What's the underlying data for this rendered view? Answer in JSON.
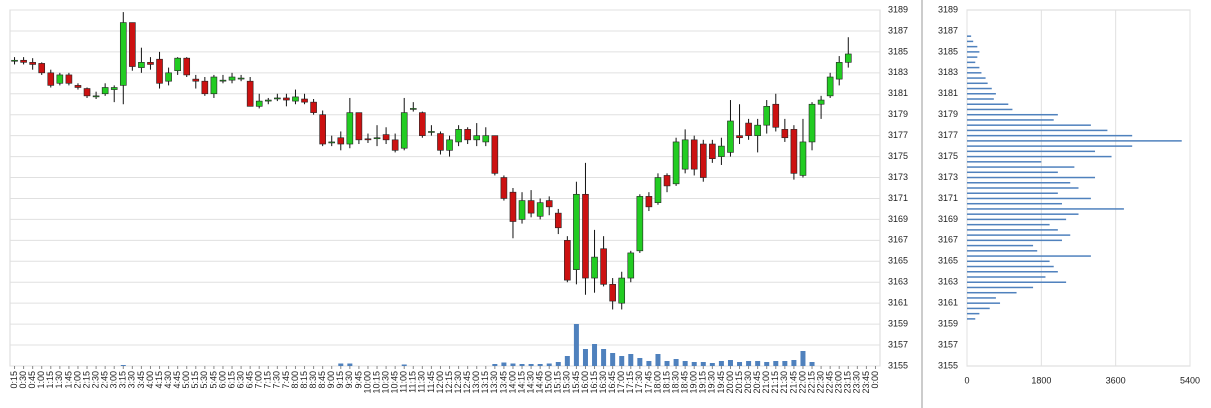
{
  "chart_data": [
    {
      "type": "candlestick",
      "categories": [
        "0:15",
        "0:30",
        "0:45",
        "1:00",
        "1:15",
        "1:30",
        "1:45",
        "2:00",
        "2:15",
        "2:30",
        "2:45",
        "3:00",
        "3:15",
        "3:30",
        "3:45",
        "4:00",
        "4:15",
        "4:30",
        "4:45",
        "5:00",
        "5:15",
        "5:30",
        "5:45",
        "6:00",
        "6:15",
        "6:30",
        "6:45",
        "7:00",
        "7:15",
        "7:30",
        "7:45",
        "8:00",
        "8:15",
        "8:30",
        "8:45",
        "9:00",
        "9:15",
        "9:30",
        "9:45",
        "10:00",
        "10:15",
        "10:30",
        "10:45",
        "11:00",
        "11:15",
        "11:30",
        "11:45",
        "12:00",
        "12:15",
        "12:30",
        "12:45",
        "13:00",
        "13:15",
        "13:30",
        "13:45",
        "14:00",
        "14:15",
        "14:30",
        "14:45",
        "15:00",
        "15:15",
        "15:30",
        "15:45",
        "16:00",
        "16:15",
        "16:30",
        "16:45",
        "17:00",
        "17:15",
        "17:30",
        "17:45",
        "18:00",
        "18:15",
        "18:30",
        "18:45",
        "19:00",
        "19:15",
        "19:30",
        "19:45",
        "20:00",
        "20:15",
        "20:30",
        "20:45",
        "21:00",
        "21:15",
        "21:30",
        "21:45",
        "22:00",
        "22:15",
        "22:30",
        "22:45",
        "23:00",
        "23:15",
        "23:30",
        "23:45",
        "0:00"
      ],
      "open": [
        3184.2,
        3184.2,
        3184.0,
        3183.9,
        3183.0,
        3182.0,
        3182.8,
        3181.8,
        3181.5,
        3180.8,
        3181.0,
        3181.4,
        3181.8,
        3187.8,
        3183.5,
        3184.0,
        3184.3,
        3182.2,
        3183.2,
        3184.4,
        3182.4,
        3182.2,
        3181.0,
        3182.3,
        3182.3,
        3182.5,
        3182.2,
        3179.8,
        3180.3,
        3180.6,
        3180.6,
        3180.3,
        3180.5,
        3180.2,
        3179.0,
        3176.4,
        3176.8,
        3176.2,
        3179.2,
        3176.7,
        3176.8,
        3177.1,
        3176.6,
        3175.8,
        3179.6,
        3179.2,
        3177.4,
        3177.2,
        3175.6,
        3176.4,
        3177.6,
        3176.6,
        3176.4,
        3177.0,
        3173.0,
        3171.6,
        3169.0,
        3170.8,
        3169.3,
        3170.8,
        3169.6,
        3167.0,
        3164.2,
        3171.4,
        3163.4,
        3166.2,
        3162.8,
        3161.0,
        3163.4,
        3166.0,
        3171.2,
        3170.6,
        3173.2,
        3172.4,
        3173.8,
        3176.6,
        3176.2,
        3176.2,
        3175.0,
        3175.4,
        3177.0,
        3178.2,
        3177.0,
        3178.0,
        3180.0,
        3177.6,
        3177.6,
        3173.2,
        3176.4,
        3180.0,
        3180.8,
        3182.4,
        3184.0,
        null,
        null,
        null
      ],
      "high": [
        3184.5,
        3184.5,
        3184.4,
        3184.0,
        3183.3,
        3183.0,
        3183.0,
        3182.0,
        3181.6,
        3181.2,
        3182.0,
        3181.8,
        3188.8,
        3187.8,
        3185.4,
        3184.5,
        3185.0,
        3183.5,
        3184.5,
        3184.5,
        3182.8,
        3182.6,
        3182.8,
        3182.8,
        3183.0,
        3182.8,
        3182.6,
        3181.0,
        3180.6,
        3181.0,
        3181.0,
        3181.4,
        3181.0,
        3180.5,
        3179.4,
        3177.0,
        3177.4,
        3180.6,
        3179.2,
        3177.2,
        3178.0,
        3177.8,
        3177.2,
        3180.6,
        3180.2,
        3179.3,
        3178.0,
        3177.4,
        3177.0,
        3178.0,
        3177.8,
        3178.2,
        3177.8,
        3177.0,
        3173.2,
        3172.0,
        3171.6,
        3171.8,
        3171.0,
        3171.2,
        3170.0,
        3167.4,
        3172.6,
        3174.4,
        3168.0,
        3167.4,
        3163.4,
        3164.0,
        3166.0,
        3171.4,
        3171.6,
        3173.4,
        3173.4,
        3176.8,
        3177.6,
        3177.0,
        3176.6,
        3176.6,
        3176.8,
        3180.4,
        3180.0,
        3178.6,
        3178.6,
        3180.4,
        3181.0,
        3178.6,
        3178.0,
        3178.6,
        3180.2,
        3180.8,
        3183.0,
        3184.6,
        3186.4,
        null,
        null,
        null
      ],
      "low": [
        3183.8,
        3183.8,
        3183.3,
        3182.8,
        3181.6,
        3181.8,
        3181.8,
        3181.4,
        3180.6,
        3180.5,
        3180.8,
        3180.2,
        3180.0,
        3183.2,
        3183.0,
        3183.3,
        3181.5,
        3181.8,
        3182.8,
        3182.6,
        3181.5,
        3180.8,
        3180.6,
        3182.0,
        3182.0,
        3182.2,
        3179.8,
        3179.6,
        3180.0,
        3180.3,
        3179.8,
        3180.0,
        3180.0,
        3179.0,
        3176.0,
        3176.0,
        3175.6,
        3175.8,
        3176.2,
        3176.3,
        3176.0,
        3176.2,
        3175.4,
        3175.6,
        3179.3,
        3176.8,
        3177.0,
        3175.2,
        3175.0,
        3176.0,
        3176.2,
        3176.0,
        3176.0,
        3173.2,
        3170.8,
        3167.2,
        3168.6,
        3169.2,
        3169.0,
        3169.4,
        3167.6,
        3163.0,
        3162.8,
        3161.8,
        3162.0,
        3162.6,
        3160.4,
        3160.4,
        3163.0,
        3165.8,
        3169.8,
        3170.4,
        3171.6,
        3172.2,
        3173.4,
        3173.2,
        3172.6,
        3174.4,
        3174.2,
        3175.0,
        3176.2,
        3176.6,
        3175.4,
        3177.2,
        3177.4,
        3176.4,
        3172.8,
        3173.0,
        3175.6,
        3178.6,
        3180.6,
        3181.8,
        3183.5,
        null,
        null,
        null
      ],
      "close": [
        3184.2,
        3184.0,
        3183.8,
        3183.0,
        3181.8,
        3182.8,
        3182.0,
        3181.6,
        3180.8,
        3180.8,
        3181.6,
        3181.6,
        3187.8,
        3183.6,
        3184.0,
        3183.8,
        3182.0,
        3183.0,
        3184.4,
        3182.8,
        3182.2,
        3181.0,
        3182.6,
        3182.3,
        3182.6,
        3182.5,
        3179.8,
        3180.3,
        3180.4,
        3180.6,
        3180.4,
        3180.7,
        3180.2,
        3179.2,
        3176.2,
        3176.4,
        3176.2,
        3179.2,
        3176.6,
        3176.6,
        3176.8,
        3176.6,
        3175.6,
        3179.2,
        3179.6,
        3177.0,
        3177.4,
        3175.6,
        3176.6,
        3177.6,
        3176.6,
        3177.0,
        3177.0,
        3173.4,
        3171.0,
        3168.8,
        3170.8,
        3169.6,
        3170.6,
        3170.2,
        3168.2,
        3163.2,
        3171.4,
        3163.4,
        3165.4,
        3162.8,
        3161.2,
        3163.4,
        3165.8,
        3171.2,
        3170.2,
        3173.0,
        3172.2,
        3176.4,
        3176.6,
        3173.8,
        3173.0,
        3174.8,
        3176.0,
        3178.4,
        3176.8,
        3177.0,
        3178.0,
        3179.8,
        3177.8,
        3176.8,
        3173.4,
        3176.4,
        3180.0,
        3180.4,
        3182.6,
        3184.0,
        3184.8,
        null,
        null,
        null
      ],
      "volume": [
        0,
        0,
        0,
        0,
        0,
        0,
        0,
        0,
        0,
        0,
        0,
        0,
        1,
        0,
        0,
        0,
        0,
        0,
        0,
        0,
        0,
        0,
        0,
        0,
        0,
        0,
        0,
        0,
        0,
        0,
        0,
        0,
        0,
        0,
        0,
        0,
        2.5,
        2.5,
        0,
        0,
        0,
        0,
        0,
        1.5,
        0,
        0,
        0,
        0,
        0,
        0,
        0,
        0,
        0,
        2,
        3.5,
        2.5,
        2,
        2,
        2,
        2.5,
        4,
        10,
        42,
        17,
        22,
        17,
        13,
        10,
        12,
        8,
        5,
        12,
        5,
        7,
        5,
        4,
        4,
        3,
        5,
        6,
        4,
        5,
        5,
        4,
        5,
        5,
        6,
        15,
        4,
        0,
        0,
        0,
        0,
        null,
        null,
        null
      ],
      "ylim": [
        3155,
        3189
      ],
      "yticks": [
        3155,
        3157,
        3159,
        3161,
        3163,
        3165,
        3167,
        3169,
        3171,
        3173,
        3175,
        3177,
        3179,
        3181,
        3183,
        3185,
        3187,
        3189
      ],
      "vlim": [
        0,
        50
      ],
      "up_color": "#22cc22",
      "down_color": "#cc1111",
      "volume_color": "#4f81bd",
      "grid": true
    },
    {
      "type": "barh",
      "levels": [
        3186.5,
        3186,
        3185.5,
        3185,
        3184.5,
        3184,
        3183.5,
        3183,
        3182.5,
        3182,
        3181.5,
        3181,
        3180.5,
        3180,
        3179.5,
        3179,
        3178.5,
        3178,
        3177.5,
        3177,
        3176.5,
        3176,
        3175.5,
        3175,
        3174.5,
        3174,
        3173.5,
        3173,
        3172.5,
        3172,
        3171.5,
        3171,
        3170.5,
        3170,
        3169.5,
        3169,
        3168.5,
        3168,
        3167.5,
        3167,
        3166.5,
        3166,
        3165.5,
        3165,
        3164.5,
        3164,
        3163.5,
        3163,
        3162.5,
        3162,
        3161.5,
        3161,
        3160.5,
        3160,
        3159.5
      ],
      "values": [
        100,
        150,
        250,
        300,
        250,
        200,
        300,
        350,
        450,
        500,
        600,
        700,
        650,
        1000,
        1100,
        2200,
        2100,
        3000,
        3400,
        4000,
        5200,
        4000,
        3100,
        3500,
        1800,
        2600,
        2200,
        3100,
        2500,
        2700,
        2200,
        3000,
        2300,
        3800,
        2700,
        2400,
        2000,
        2200,
        2500,
        2300,
        1600,
        1700,
        3000,
        2000,
        2100,
        2200,
        1900,
        2400,
        1600,
        1200,
        700,
        800,
        550,
        300,
        200
      ],
      "xlim": [
        0,
        5400
      ],
      "xticks": [
        0,
        1800,
        3600,
        5400
      ],
      "ylim": [
        3155,
        3189
      ],
      "yticks": [
        3155,
        3157,
        3159,
        3161,
        3163,
        3165,
        3167,
        3169,
        3171,
        3173,
        3175,
        3177,
        3179,
        3181,
        3183,
        3185,
        3187,
        3189
      ],
      "color": "#4f81bd",
      "grid": true
    }
  ]
}
